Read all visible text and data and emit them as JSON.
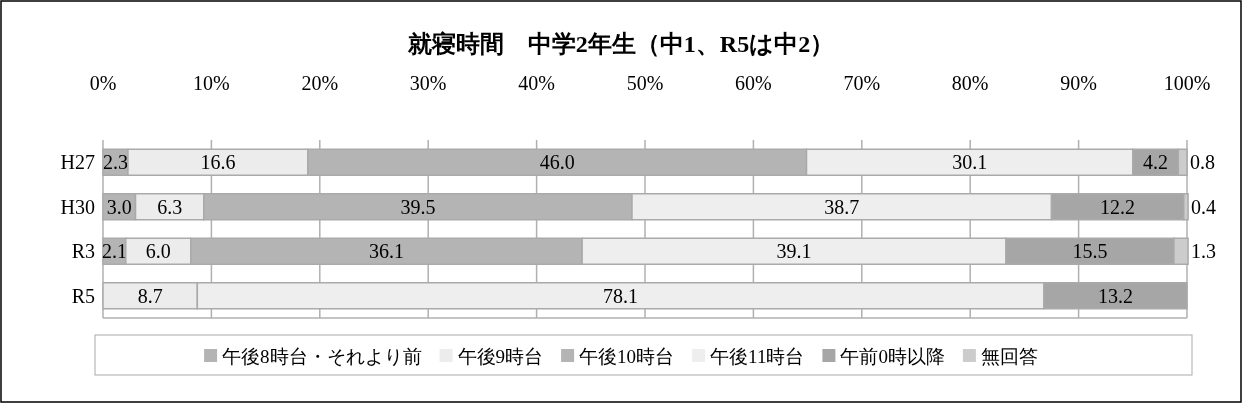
{
  "chart_data": {
    "type": "bar",
    "orientation": "horizontal",
    "stacked": true,
    "title": "就寝時間　中学2年生（中1、R5は中2）",
    "categories": [
      "H27",
      "H30",
      "R3",
      "R5"
    ],
    "series": [
      {
        "name": "午後8時台・それより前",
        "color": "#b4b4b4",
        "values": [
          2.3,
          3.0,
          2.1,
          null
        ],
        "value_labels": [
          "2.3",
          "3.0",
          "2.1",
          null
        ]
      },
      {
        "name": "午後9時台",
        "color": "#ececec",
        "values": [
          16.6,
          6.3,
          6.0,
          8.7
        ],
        "value_labels": [
          "16.6",
          "6.3",
          "6.0",
          "8.7"
        ]
      },
      {
        "name": "午後10時台",
        "color": "#b4b4b4",
        "values": [
          46.0,
          39.5,
          36.1,
          null
        ],
        "value_labels": [
          "46.0",
          "39.5",
          "36.1",
          null
        ]
      },
      {
        "name": "午後11時台",
        "color": "#eeeeee",
        "values": [
          30.1,
          38.7,
          39.1,
          78.1
        ],
        "value_labels": [
          "30.1",
          "38.7",
          "39.1",
          "78.1"
        ]
      },
      {
        "name": "午前0時以降",
        "color": "#a6a6a6",
        "values": [
          4.2,
          12.2,
          15.5,
          13.2
        ],
        "value_labels": [
          "4.2",
          "12.2",
          "15.5",
          "13.2"
        ]
      },
      {
        "name": "無回答",
        "color": "#cccccc",
        "values": [
          0.8,
          0.4,
          1.3,
          null
        ],
        "value_labels": [
          "0.8",
          "0.4",
          "1.3",
          null
        ]
      }
    ],
    "xlim": [
      0,
      100
    ],
    "xticks": [
      {
        "value": 0,
        "label": "0%"
      },
      {
        "value": 10,
        "label": "10%"
      },
      {
        "value": 20,
        "label": "20%"
      },
      {
        "value": 30,
        "label": "30%"
      },
      {
        "value": 40,
        "label": "40%"
      },
      {
        "value": 50,
        "label": "50%"
      },
      {
        "value": 60,
        "label": "60%"
      },
      {
        "value": 70,
        "label": "70%"
      },
      {
        "value": 80,
        "label": "80%"
      },
      {
        "value": 90,
        "label": "90%"
      },
      {
        "value": 100,
        "label": "100%"
      }
    ],
    "grid": "x",
    "legend": "bottom"
  }
}
